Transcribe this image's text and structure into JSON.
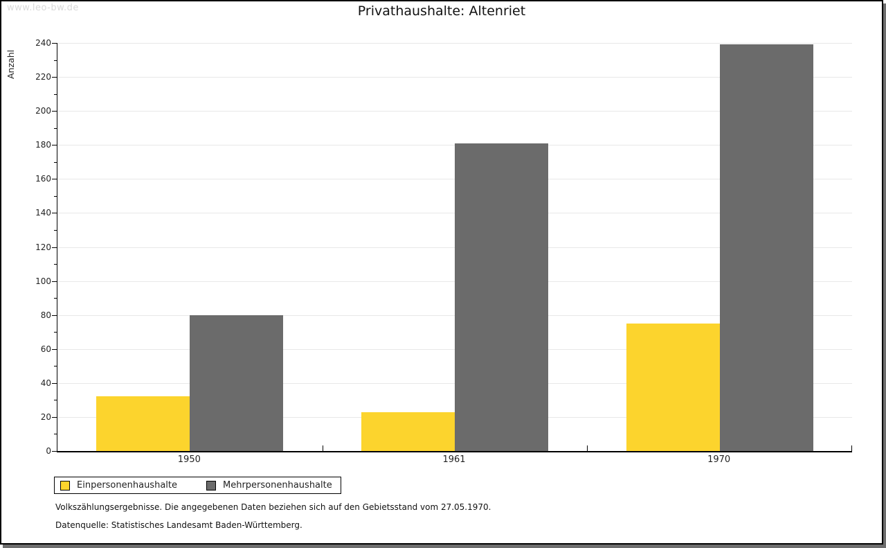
{
  "page": {
    "watermark": "www.leo-bw.de",
    "title": "Privathaushalte: Altenriet",
    "footer_line1": "Volkszählungsergebnisse. Die angegebenen Daten beziehen sich auf den Gebietsstand vom 27.05.1970.",
    "footer_line2": "Datenquelle: Statistisches Landesamt Baden-Württemberg."
  },
  "chart_data": {
    "type": "bar",
    "title": "Privathaushalte: Altenriet",
    "categories": [
      "1950",
      "1961",
      "1970"
    ],
    "series": [
      {
        "name": "Einpersonenhaushalte",
        "color": "#fcd42d",
        "values": [
          32,
          23,
          75
        ]
      },
      {
        "name": "Mehrpersonenhaushalte",
        "color": "#6b6b6b",
        "values": [
          80,
          181,
          239
        ]
      }
    ],
    "xlabel": "",
    "ylabel": "Anzahl",
    "ylim": [
      0,
      240
    ],
    "ytick_step": 20,
    "yminor_step": 10,
    "grid": true,
    "gridline_color": "#e8e8e8",
    "legend_position": "bottom-left"
  },
  "colors": {
    "page_border": "#000000",
    "page_shadow": "#6e6e6e",
    "watermark": "#d9d9d9",
    "axis": "#000000",
    "text": "#222222"
  }
}
